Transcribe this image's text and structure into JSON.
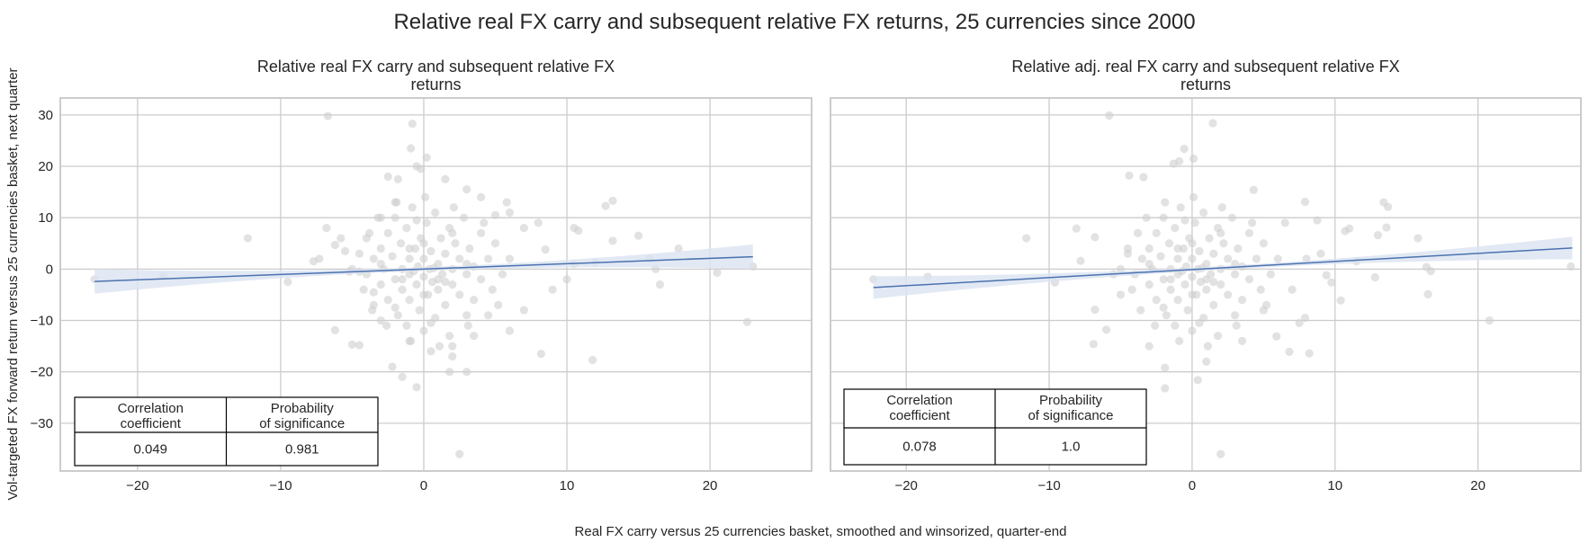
{
  "figure": {
    "suptitle": "Relative real FX carry and subsequent relative FX returns, 25 currencies since 2000",
    "xlabel": "Real FX carry versus 25 currencies basket, smoothed and winsorized, quarter-end",
    "ylabel": "Vol-targeted FX forward return versus 25 currencies basket, next quarter"
  },
  "chart_data": [
    {
      "type": "scatter",
      "title_lines": [
        "Relative real FX carry and subsequent relative FX",
        "returns"
      ],
      "xlim": [
        -25.4,
        27.1
      ],
      "ylim": [
        -39.3,
        33.3
      ],
      "xticks": [
        -20,
        -10,
        0,
        10,
        20
      ],
      "xtick_labels": [
        "−20",
        "−10",
        "0",
        "10",
        "20"
      ],
      "yticks": [
        30,
        20,
        10,
        0,
        -10,
        -20,
        -30
      ],
      "ytick_labels": [
        "30",
        "20",
        "10",
        "0",
        "−10",
        "−20",
        "−30"
      ],
      "grid": true,
      "point_color": "#cfcfcf",
      "line_color": "#4c72b0",
      "band_color": "#dbe3f1",
      "regression": {
        "x": [
          -23.0,
          23.0
        ],
        "y": [
          -2.4,
          2.4
        ],
        "ci_halfwidth_ends": 2.4,
        "ci_halfwidth_center": 0.35
      },
      "table": {
        "headers": [
          "Correlation\ncoefficient",
          "Probability\nof significance"
        ],
        "values": [
          "0.049",
          "0.981"
        ]
      },
      "points": [
        [
          -23,
          -2
        ],
        [
          -18.2,
          -1.3
        ],
        [
          -12.3,
          6
        ],
        [
          -6.7,
          29.8
        ],
        [
          -9.5,
          -2.5
        ],
        [
          -7.7,
          1.5
        ],
        [
          -7.3,
          2
        ],
        [
          -5.8,
          6
        ],
        [
          -6.8,
          8
        ],
        [
          -6.2,
          4.7
        ],
        [
          -5.5,
          3.5
        ],
        [
          -5.2,
          -0.5
        ],
        [
          -4.5,
          -0.5
        ],
        [
          -6.2,
          -11.9
        ],
        [
          -4.5,
          -14.8
        ],
        [
          -5,
          -14.7
        ],
        [
          -3.5,
          -4.5
        ],
        [
          -3.5,
          -7
        ],
        [
          -2.2,
          -19
        ],
        [
          -1.5,
          -21
        ],
        [
          -0.5,
          -23
        ],
        [
          1.8,
          -20
        ],
        [
          2.5,
          -36
        ],
        [
          0.5,
          -16
        ],
        [
          -2.5,
          18
        ],
        [
          -1.8,
          17.5
        ],
        [
          -0.8,
          28.3
        ],
        [
          -0.9,
          23.5
        ],
        [
          0.2,
          21.7
        ],
        [
          -0.5,
          20
        ],
        [
          -0.2,
          19.5
        ],
        [
          1.5,
          17.5
        ],
        [
          3,
          15.5
        ],
        [
          4,
          14
        ],
        [
          6,
          11
        ],
        [
          5.8,
          13
        ],
        [
          8,
          9
        ],
        [
          7,
          8
        ],
        [
          5,
          10.5
        ],
        [
          10.5,
          8
        ],
        [
          10.8,
          7.5
        ],
        [
          12.7,
          12.3
        ],
        [
          13.2,
          13.3
        ],
        [
          13.2,
          5.5
        ],
        [
          15,
          6.5
        ],
        [
          9,
          -4
        ],
        [
          8.2,
          -16.5
        ],
        [
          11.8,
          -17.7
        ],
        [
          10,
          -2
        ],
        [
          16.5,
          -3
        ],
        [
          16.2,
          0
        ],
        [
          17.8,
          4
        ],
        [
          22.6,
          -10.3
        ],
        [
          23,
          0.5
        ],
        [
          20.5,
          -0.7
        ],
        [
          15.8,
          2
        ],
        [
          10.5,
          1
        ],
        [
          12,
          1.3
        ],
        [
          8.5,
          3.8
        ],
        [
          7,
          -8
        ],
        [
          6,
          -12
        ],
        [
          4.5,
          -9
        ],
        [
          3.5,
          -13
        ],
        [
          2,
          -15
        ],
        [
          -1,
          -14
        ],
        [
          -3,
          -10
        ],
        [
          -4,
          6
        ],
        [
          -3,
          10
        ],
        [
          -2,
          13
        ],
        [
          3,
          -20
        ],
        [
          2,
          -17
        ],
        [
          -4,
          -1
        ],
        [
          -3.5,
          2
        ],
        [
          -3,
          -3
        ],
        [
          -3,
          4
        ],
        [
          -2.8,
          0
        ],
        [
          -2.5,
          -6
        ],
        [
          -2.5,
          7
        ],
        [
          -2.2,
          2.5
        ],
        [
          -2,
          -2
        ],
        [
          -2,
          10
        ],
        [
          -1.8,
          -9
        ],
        [
          -1.6,
          5
        ],
        [
          -1.5,
          0
        ],
        [
          -1.5,
          -4
        ],
        [
          -1.2,
          8
        ],
        [
          -1.2,
          -11
        ],
        [
          -1,
          2
        ],
        [
          -1,
          -1
        ],
        [
          -1,
          -6
        ],
        [
          -0.8,
          12
        ],
        [
          -0.6,
          4
        ],
        [
          -0.5,
          -3
        ],
        [
          -0.4,
          0.5
        ],
        [
          -0.3,
          -8
        ],
        [
          -0.2,
          6
        ],
        [
          0,
          -1.5
        ],
        [
          0,
          2
        ],
        [
          0,
          -12
        ],
        [
          0.2,
          9
        ],
        [
          0.3,
          -5
        ],
        [
          0.4,
          0
        ],
        [
          0.5,
          3.5
        ],
        [
          0.6,
          -2.5
        ],
        [
          0.8,
          11
        ],
        [
          0.8,
          -9.5
        ],
        [
          1,
          1
        ],
        [
          1,
          -4
        ],
        [
          1.2,
          6
        ],
        [
          1.3,
          -1
        ],
        [
          1.5,
          3
        ],
        [
          1.5,
          -7
        ],
        [
          1.8,
          -13
        ],
        [
          1.8,
          8
        ],
        [
          2,
          0
        ],
        [
          2,
          -3
        ],
        [
          2.2,
          5
        ],
        [
          2.5,
          -5
        ],
        [
          2.5,
          2
        ],
        [
          2.8,
          10
        ],
        [
          3,
          -1
        ],
        [
          3,
          -9
        ],
        [
          3.2,
          4
        ],
        [
          3.5,
          0.5
        ],
        [
          3.5,
          -6
        ],
        [
          4,
          7
        ],
        [
          4,
          -2
        ],
        [
          4.5,
          2
        ],
        [
          4.8,
          -4
        ],
        [
          5,
          5
        ],
        [
          5.5,
          -1
        ],
        [
          -4.5,
          3
        ],
        [
          -4.2,
          -4
        ],
        [
          -3.8,
          7
        ],
        [
          -3.6,
          -8
        ],
        [
          -3.2,
          10
        ],
        [
          -2.6,
          -11
        ],
        [
          -1.9,
          13
        ],
        [
          -0.9,
          -14
        ],
        [
          0.1,
          14
        ],
        [
          1.1,
          -15
        ],
        [
          2.1,
          12
        ],
        [
          3.1,
          -11
        ],
        [
          4.2,
          9
        ],
        [
          5.2,
          -7
        ],
        [
          6,
          2
        ],
        [
          -5,
          0
        ],
        [
          0,
          5
        ],
        [
          0,
          -5
        ],
        [
          -1,
          4
        ],
        [
          1,
          -2
        ],
        [
          -2,
          -7.5
        ],
        [
          2,
          7
        ],
        [
          -0.5,
          9.5
        ],
        [
          0.5,
          -10.5
        ],
        [
          -3,
          1
        ],
        [
          3,
          1
        ],
        [
          -1.5,
          -2
        ],
        [
          1.5,
          -2.5
        ],
        [
          0.7,
          0.2
        ],
        [
          -0.7,
          -0.4
        ]
      ]
    },
    {
      "type": "scatter",
      "title_lines": [
        "Relative adj. real FX carry and subsequent relative FX",
        "returns"
      ],
      "xlim": [
        -25.3,
        27.2
      ],
      "ylim": [
        -39.3,
        33.3
      ],
      "xticks": [
        -20,
        -10,
        0,
        10,
        20
      ],
      "xtick_labels": [
        "−20",
        "−10",
        "0",
        "10",
        "20"
      ],
      "yticks": [
        30,
        20,
        10,
        0,
        -10,
        -20,
        -30
      ],
      "grid": true,
      "point_color": "#cfcfcf",
      "line_color": "#4c72b0",
      "band_color": "#dbe3f1",
      "regression": {
        "x": [
          -22.3,
          26.6
        ],
        "y": [
          -3.6,
          4.1
        ],
        "ci_halfwidth_ends": 2.2,
        "ci_halfwidth_center": 0.35
      },
      "table": {
        "headers": [
          "Correlation\ncoefficient",
          "Probability\nof significance"
        ],
        "values": [
          "0.078",
          "1.0"
        ]
      },
      "points": [
        [
          -22.3,
          -2
        ],
        [
          -18.5,
          -1.5
        ],
        [
          -11.6,
          6
        ],
        [
          -5.8,
          29.9
        ],
        [
          1.45,
          28.4
        ],
        [
          -0.55,
          23.4
        ],
        [
          -4.4,
          18.2
        ],
        [
          -3.4,
          17.9
        ],
        [
          4.3,
          15.4
        ],
        [
          7.9,
          13.1
        ],
        [
          13.4,
          13
        ],
        [
          13.7,
          12.1
        ],
        [
          13.6,
          8.1
        ],
        [
          13,
          6.6
        ],
        [
          10.7,
          7.4
        ],
        [
          11,
          7.9
        ],
        [
          8.75,
          9.5
        ],
        [
          12.8,
          -1.6
        ],
        [
          10.4,
          -6.1
        ],
        [
          8.2,
          -16.4
        ],
        [
          6.8,
          -16.1
        ],
        [
          5.9,
          -13.1
        ],
        [
          7.5,
          -10.5
        ],
        [
          7.9,
          -9.5
        ],
        [
          0.4,
          -21.6
        ],
        [
          -1.9,
          -23.2
        ],
        [
          -1.9,
          -19.2
        ],
        [
          -6.9,
          -14.6
        ],
        [
          -6,
          -11.8
        ],
        [
          -6.8,
          -7.9
        ],
        [
          -8.1,
          7.9
        ],
        [
          -9.6,
          -2.6
        ],
        [
          -7.8,
          1.6
        ],
        [
          -6.8,
          6.2
        ],
        [
          9.75,
          -2.6
        ],
        [
          9.4,
          -1.2
        ],
        [
          26.5,
          0.5
        ],
        [
          20.8,
          -10
        ],
        [
          16.5,
          -4.9
        ],
        [
          16.7,
          -0.4
        ],
        [
          16.4,
          0.4
        ],
        [
          15.8,
          6
        ],
        [
          2,
          -36
        ],
        [
          -0.9,
          21
        ],
        [
          0.1,
          21.5
        ],
        [
          -1.3,
          20.5
        ],
        [
          6.5,
          9
        ],
        [
          8,
          2
        ],
        [
          9,
          3
        ],
        [
          11.5,
          1.5
        ],
        [
          7,
          -4
        ],
        [
          5,
          -8
        ],
        [
          -5,
          -5
        ],
        [
          -4.5,
          4
        ],
        [
          -5.5,
          -1
        ],
        [
          3.5,
          -14
        ],
        [
          -3,
          -15
        ],
        [
          1,
          -18
        ],
        [
          -4,
          -1
        ],
        [
          -3.5,
          2
        ],
        [
          -3,
          -3
        ],
        [
          -3,
          4
        ],
        [
          -2.8,
          0
        ],
        [
          -2.5,
          -6
        ],
        [
          -2.5,
          7
        ],
        [
          -2.2,
          2.5
        ],
        [
          -2,
          -2
        ],
        [
          -2,
          10
        ],
        [
          -1.8,
          -9
        ],
        [
          -1.6,
          5
        ],
        [
          -1.5,
          0
        ],
        [
          -1.5,
          -4
        ],
        [
          -1.2,
          8
        ],
        [
          -1.2,
          -11
        ],
        [
          -1,
          2
        ],
        [
          -1,
          -1
        ],
        [
          -1,
          -6
        ],
        [
          -0.8,
          12
        ],
        [
          -0.6,
          4
        ],
        [
          -0.5,
          -3
        ],
        [
          -0.4,
          0.5
        ],
        [
          -0.3,
          -8
        ],
        [
          -0.2,
          6
        ],
        [
          0,
          -1.5
        ],
        [
          0,
          2
        ],
        [
          0,
          -12
        ],
        [
          0.2,
          9
        ],
        [
          0.3,
          -5
        ],
        [
          0.4,
          0
        ],
        [
          0.5,
          3.5
        ],
        [
          0.6,
          -2.5
        ],
        [
          0.8,
          11
        ],
        [
          0.8,
          -9.5
        ],
        [
          1,
          1
        ],
        [
          1,
          -4
        ],
        [
          1.2,
          6
        ],
        [
          1.3,
          -1
        ],
        [
          1.5,
          3
        ],
        [
          1.5,
          -7
        ],
        [
          1.8,
          -13
        ],
        [
          1.8,
          8
        ],
        [
          2,
          0
        ],
        [
          2,
          -3
        ],
        [
          2.2,
          5
        ],
        [
          2.5,
          -5
        ],
        [
          2.5,
          2
        ],
        [
          2.8,
          10
        ],
        [
          3,
          -1
        ],
        [
          3,
          -9
        ],
        [
          3.2,
          4
        ],
        [
          3.5,
          0.5
        ],
        [
          3.5,
          -6
        ],
        [
          4,
          7
        ],
        [
          4,
          -2
        ],
        [
          4.5,
          2
        ],
        [
          4.8,
          -4
        ],
        [
          5,
          5
        ],
        [
          5.5,
          -1
        ],
        [
          -4.5,
          3
        ],
        [
          -4.2,
          -4
        ],
        [
          -3.8,
          7
        ],
        [
          -3.6,
          -8
        ],
        [
          -3.2,
          10
        ],
        [
          -2.6,
          -11
        ],
        [
          -1.9,
          13
        ],
        [
          -0.9,
          -14
        ],
        [
          0.1,
          14
        ],
        [
          1.1,
          -15
        ],
        [
          2.1,
          12
        ],
        [
          3.1,
          -11
        ],
        [
          4.2,
          9
        ],
        [
          5.2,
          -7
        ],
        [
          6,
          2
        ],
        [
          -5,
          0
        ],
        [
          0,
          5
        ],
        [
          0,
          -5
        ],
        [
          -1,
          4
        ],
        [
          1,
          -2
        ],
        [
          -2,
          -7.5
        ],
        [
          2,
          7
        ],
        [
          -0.5,
          9.5
        ],
        [
          0.5,
          -10.5
        ],
        [
          -3,
          1
        ],
        [
          3,
          1
        ],
        [
          -1.5,
          -2
        ],
        [
          1.5,
          -2.5
        ],
        [
          0.7,
          0.2
        ],
        [
          -0.7,
          -0.4
        ]
      ]
    }
  ]
}
